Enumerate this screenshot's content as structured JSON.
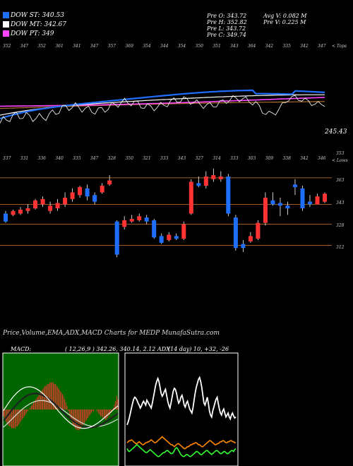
{
  "header": {
    "legend": [
      {
        "label": "DOW ST: 340.53",
        "color": "#1f6fff"
      },
      {
        "label": "DOW MT: 342.67",
        "color": "#ffffff"
      },
      {
        "label": "DOW PT: 349",
        "color": "#ff44ff"
      }
    ],
    "prev_ohlc": [
      "Pre  O: 343.72",
      "Pre  H: 352.82",
      "Pre  L: 343.72",
      "Pre  C: 349.74"
    ],
    "avg_v": "Avg V: 0.082  M",
    "pre_v": "Pre  V: 0.225  M"
  },
  "top_panel": {
    "tops_label": "< Tops",
    "top_values": [
      "352",
      "347",
      "352",
      "361",
      "341",
      "347",
      "357",
      "369",
      "354",
      "344",
      "354",
      "350",
      "351",
      "343",
      "364",
      "342",
      "335",
      "342",
      "347"
    ],
    "price_tag": "245.43",
    "line_colors": {
      "price": "#ffffff",
      "ema_short": "#1f6fff",
      "ema_mid": "#ffffff",
      "ema_long": "#ff44ff",
      "ema_extra": "#b07030"
    }
  },
  "middle_panel": {
    "lows_label": "< Lows",
    "low_values": [
      "337",
      "331",
      "336",
      "340",
      "335",
      "347",
      "328",
      "350",
      "321",
      "333",
      "343",
      "327",
      "314",
      "333",
      "303",
      "309",
      "338",
      "342",
      "346"
    ],
    "price_levels": [
      "353",
      "363",
      "343",
      "328",
      "312"
    ],
    "colors": {
      "up": "#ff3333",
      "down": "#1f6fff",
      "level": "#d47a2a"
    }
  },
  "bottom": {
    "title": "Price,Volume,EMA,ADX,MACD Charts for MEDP MunafaSutra.com",
    "macd_label": "MACD:",
    "macd_values": "( 12,26,9 ) 342.26,  340.14, 2.12 ADX",
    "adx_values": "(14  day) 10,  +32,  -26"
  },
  "chart_data": [
    {
      "type": "line",
      "title": "",
      "legend": [
        "DOW ST: 340.53",
        "DOW MT: 342.67",
        "DOW PT: 349"
      ],
      "tick_labels_top": [
        "352",
        "347",
        "352",
        "361",
        "341",
        "347",
        "357",
        "369",
        "354",
        "344",
        "354",
        "350",
        "351",
        "343",
        "364",
        "342",
        "335",
        "342",
        "347"
      ],
      "tick_labels_low": [
        "337",
        "331",
        "336",
        "340",
        "335",
        "347",
        "328",
        "350",
        "321",
        "333",
        "343",
        "327",
        "314",
        "333",
        "303",
        "309",
        "338",
        "342",
        "346"
      ],
      "last_value": 245.43
    },
    {
      "type": "candlestick",
      "levels": [
        363,
        343,
        328,
        312
      ],
      "candles": [
        {
          "o": 336,
          "c": 330,
          "h": 338,
          "l": 329
        },
        {
          "o": 335,
          "c": 338,
          "h": 339,
          "l": 334
        },
        {
          "o": 336,
          "c": 339,
          "h": 341,
          "l": 335
        },
        {
          "o": 338,
          "c": 340,
          "h": 343,
          "l": 336
        },
        {
          "o": 340,
          "c": 346,
          "h": 347,
          "l": 339
        },
        {
          "o": 343,
          "c": 347,
          "h": 349,
          "l": 341
        },
        {
          "o": 338,
          "c": 342,
          "h": 345,
          "l": 336
        },
        {
          "o": 340,
          "c": 344,
          "h": 347,
          "l": 338
        },
        {
          "o": 343,
          "c": 348,
          "h": 352,
          "l": 341
        },
        {
          "o": 347,
          "c": 352,
          "h": 355,
          "l": 345
        },
        {
          "o": 350,
          "c": 356,
          "h": 357,
          "l": 348
        },
        {
          "o": 355,
          "c": 349,
          "h": 358,
          "l": 346
        },
        {
          "o": 350,
          "c": 345,
          "h": 352,
          "l": 343
        },
        {
          "o": 352,
          "c": 357,
          "h": 359,
          "l": 351
        },
        {
          "o": 358,
          "c": 361,
          "h": 365,
          "l": 357
        },
        {
          "o": 330,
          "c": 305,
          "h": 331,
          "l": 303
        },
        {
          "o": 326,
          "c": 331,
          "h": 334,
          "l": 324
        },
        {
          "o": 330,
          "c": 332,
          "h": 335,
          "l": 329
        },
        {
          "o": 331,
          "c": 334,
          "h": 336,
          "l": 330
        },
        {
          "o": 333,
          "c": 330,
          "h": 335,
          "l": 328
        },
        {
          "o": 331,
          "c": 318,
          "h": 332,
          "l": 317
        },
        {
          "o": 319,
          "c": 314,
          "h": 321,
          "l": 313
        },
        {
          "o": 316,
          "c": 320,
          "h": 322,
          "l": 315
        },
        {
          "o": 319,
          "c": 317,
          "h": 321,
          "l": 316
        },
        {
          "o": 317,
          "c": 328,
          "h": 330,
          "l": 316
        },
        {
          "o": 336,
          "c": 360,
          "h": 362,
          "l": 335
        },
        {
          "o": 359,
          "c": 357,
          "h": 364,
          "l": 356
        },
        {
          "o": 357,
          "c": 364,
          "h": 368,
          "l": 355
        },
        {
          "o": 362,
          "c": 365,
          "h": 370,
          "l": 360
        },
        {
          "o": 362,
          "c": 364,
          "h": 368,
          "l": 360
        },
        {
          "o": 364,
          "c": 336,
          "h": 366,
          "l": 334
        },
        {
          "o": 333,
          "c": 310,
          "h": 335,
          "l": 308
        },
        {
          "o": 313,
          "c": 310,
          "h": 316,
          "l": 307
        },
        {
          "o": 315,
          "c": 319,
          "h": 322,
          "l": 314
        },
        {
          "o": 317,
          "c": 329,
          "h": 331,
          "l": 316
        },
        {
          "o": 329,
          "c": 348,
          "h": 352,
          "l": 327
        },
        {
          "o": 346,
          "c": 343,
          "h": 352,
          "l": 342
        },
        {
          "o": 344,
          "c": 342,
          "h": 348,
          "l": 334
        },
        {
          "o": 342,
          "c": 340,
          "h": 345,
          "l": 335
        },
        {
          "o": 358,
          "c": 356,
          "h": 362,
          "l": 350
        },
        {
          "o": 355,
          "c": 340,
          "h": 357,
          "l": 338
        },
        {
          "o": 345,
          "c": 343,
          "h": 350,
          "l": 341
        },
        {
          "o": 343,
          "c": 349,
          "h": 351,
          "l": 343
        },
        {
          "o": 345,
          "c": 351,
          "h": 352,
          "l": 344
        }
      ]
    },
    {
      "type": "bar",
      "title": "MACD",
      "values": [
        -4,
        -6,
        -7,
        -8,
        -9,
        -10,
        -10,
        -11,
        -11,
        -11,
        -11,
        -10,
        -10,
        -9,
        -8,
        -7,
        -6,
        -5,
        -4,
        -3,
        -2,
        -1,
        0,
        1,
        2,
        3,
        4,
        5,
        6,
        7,
        8,
        9,
        10,
        11,
        12,
        13,
        14,
        14,
        15,
        15,
        16,
        16,
        16,
        16,
        15,
        15,
        14,
        13,
        12,
        11,
        10,
        9,
        8,
        6,
        4,
        2,
        -1,
        -3,
        -5,
        -7,
        -9,
        -10,
        -11,
        -12,
        -12,
        -12,
        -12,
        -11,
        -10,
        -9,
        -8,
        -7,
        -6,
        -5,
        -4,
        -3,
        -2,
        -1,
        -1,
        0,
        0,
        -1,
        -2,
        -3,
        -4,
        -4,
        -5,
        -5,
        -6,
        -6,
        -5,
        -4,
        -3,
        -2,
        -1,
        1,
        3,
        5,
        8,
        6
      ],
      "params": "( 12,26,9 ) 342.26,  340.14, 2.12"
    },
    {
      "type": "line",
      "title": "ADX",
      "series": [
        {
          "values": [
            38,
            41,
            45,
            50,
            55,
            60,
            64,
            66,
            65,
            63,
            60,
            58,
            55,
            57,
            60,
            62,
            60,
            58,
            63,
            61,
            59,
            57,
            55,
            60,
            66,
            72,
            78,
            82,
            85,
            82,
            76,
            70,
            67,
            69,
            72,
            74,
            68,
            62,
            58,
            55,
            60,
            66,
            72,
            75,
            74,
            70,
            64,
            60,
            62,
            66,
            68,
            64,
            58,
            56,
            60,
            62,
            58,
            54,
            52,
            50,
            55,
            63,
            70,
            76,
            80,
            84,
            86,
            82,
            76,
            68,
            60,
            58,
            62,
            66,
            60,
            52,
            48,
            46,
            52,
            56,
            60,
            64,
            66,
            60,
            54,
            50,
            48,
            52,
            54,
            50,
            46,
            48,
            50,
            46,
            44,
            48,
            50,
            47,
            45,
            46
          ]
        },
        {
          "values": [
            20,
            21,
            22,
            22,
            23,
            22,
            21,
            20,
            19,
            19,
            20,
            21,
            20,
            19,
            18,
            18,
            19,
            20,
            20,
            21,
            21,
            22,
            23,
            22,
            21,
            20,
            20,
            21,
            22,
            23,
            24,
            25,
            26,
            25,
            24,
            23,
            22,
            21,
            20,
            19,
            18,
            18,
            17,
            16,
            17,
            18,
            19,
            19,
            18,
            17,
            16,
            15,
            14,
            14,
            15,
            16,
            16,
            17,
            18,
            18,
            19,
            19,
            20,
            20,
            19,
            18,
            18,
            17,
            16,
            16,
            17,
            18,
            19,
            20,
            21,
            22,
            22,
            21,
            20,
            19,
            18,
            18,
            19,
            19,
            20,
            21,
            21,
            22,
            22,
            21,
            20,
            20,
            21,
            21,
            22,
            22,
            21,
            21,
            20,
            20
          ]
        },
        {
          "values": [
            14,
            12,
            11,
            12,
            13,
            14,
            15,
            16,
            17,
            18,
            17,
            16,
            15,
            14,
            13,
            12,
            11,
            10,
            10,
            11,
            12,
            13,
            12,
            11,
            10,
            9,
            8,
            7,
            6,
            6,
            7,
            8,
            9,
            10,
            10,
            11,
            12,
            12,
            11,
            10,
            9,
            9,
            10,
            12,
            14,
            15,
            14,
            12,
            10,
            8,
            7,
            6,
            6,
            7,
            8,
            8,
            7,
            6,
            6,
            7,
            8,
            9,
            10,
            11,
            11,
            10,
            9,
            8,
            8,
            9,
            10,
            11,
            12,
            12,
            11,
            10,
            9,
            8,
            9,
            10,
            11,
            12,
            12,
            11,
            10,
            9,
            9,
            10,
            11,
            11,
            10,
            9,
            9,
            10,
            11,
            12,
            12,
            11,
            13,
            14
          ]
        }
      ],
      "params": "(14  day) 10,  +32,  -26"
    }
  ]
}
